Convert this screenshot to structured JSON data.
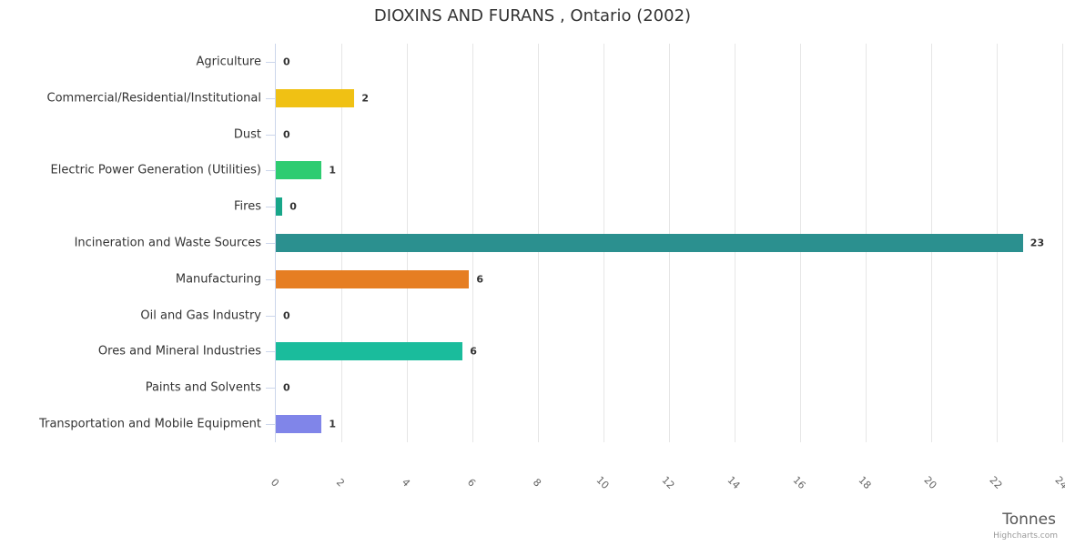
{
  "credits": "Highcharts.com",
  "colors": {
    "axis_line": "#ccd6eb",
    "gridline": "#e6e6e6",
    "title_text": "#333333",
    "category_label": "#333333",
    "data_label": "#333333",
    "tick_label": "#666666",
    "axis_title": "#555555",
    "credits_text": "#999999"
  },
  "chart_data": {
    "type": "bar",
    "orientation": "horizontal",
    "title": "DIOXINS AND FURANS , Ontario (2002)",
    "xlabel": "Tonnes",
    "ylabel": "",
    "xlim": [
      0,
      24
    ],
    "x_ticks": [
      0,
      2,
      4,
      6,
      8,
      10,
      12,
      14,
      16,
      18,
      20,
      22,
      24
    ],
    "grid": true,
    "legend": false,
    "categories": [
      "Agriculture",
      "Commercial/Residential/Institutional",
      "Dust",
      "Electric Power Generation (Utilities)",
      "Fires",
      "Incineration and Waste Sources",
      "Manufacturing",
      "Oil and Gas Industry",
      "Ores and Mineral Industries",
      "Paints and Solvents",
      "Transportation and Mobile Equipment"
    ],
    "values": [
      0,
      2.4,
      0,
      1.4,
      0.2,
      22.8,
      5.9,
      0,
      5.7,
      0,
      1.4
    ],
    "data_labels": [
      "0",
      "2",
      "0",
      "1",
      "0",
      "23",
      "6",
      "0",
      "6",
      "0",
      "1"
    ],
    "bar_colors": [
      null,
      "#f0c114",
      null,
      "#2ecc71",
      "#18a689",
      "#2b908f",
      "#e67e22",
      null,
      "#1abc9c",
      null,
      "#8085e9"
    ]
  }
}
